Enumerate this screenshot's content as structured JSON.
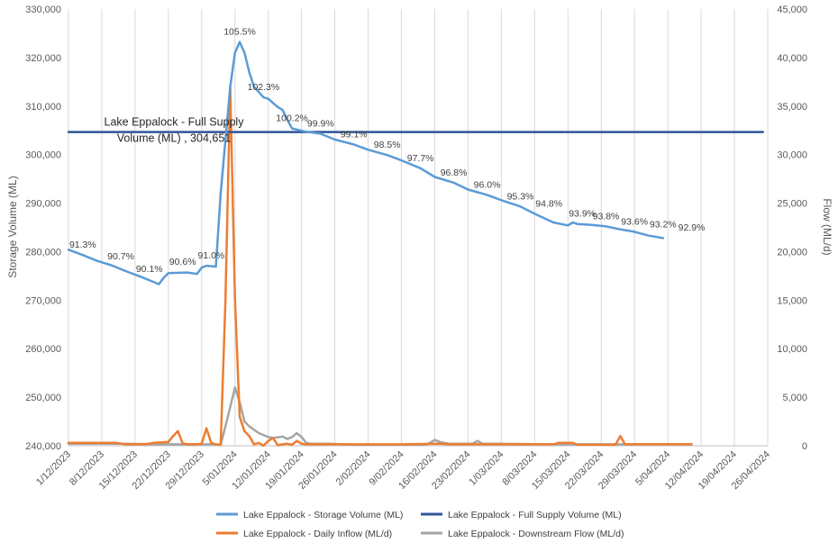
{
  "chart_data": {
    "type": "line",
    "x_axis": {
      "tick_labels": [
        "1/12/2023",
        "8/12/2023",
        "15/12/2023",
        "22/12/2023",
        "29/12/2023",
        "5/01/2024",
        "12/01/2024",
        "19/01/2024",
        "26/01/2024",
        "2/02/2024",
        "9/02/2024",
        "16/02/2024",
        "23/02/2024",
        "1/03/2024",
        "8/03/2024",
        "15/03/2024",
        "22/03/2024",
        "29/03/2024",
        "5/04/2024",
        "12/04/2024",
        "19/04/2024",
        "26/04/2024"
      ]
    },
    "y_left": {
      "label": "Storage Volume (ML)",
      "range": [
        240000,
        330000
      ],
      "tick_labels": [
        "240,000",
        "250,000",
        "260,000",
        "270,000",
        "280,000",
        "290,000",
        "300,000",
        "310,000",
        "320,000",
        "330,000"
      ]
    },
    "y_right": {
      "label": "Flow (ML/d)",
      "range": [
        0,
        45000
      ],
      "tick_labels": [
        "0",
        "5,000",
        "10,000",
        "15,000",
        "20,000",
        "25,000",
        "30,000",
        "35,000",
        "40,000",
        "45,000"
      ]
    },
    "grid": "vertical",
    "legend_position": "bottom",
    "colors": {
      "storage": "#5b9bd5",
      "fsl": "#2f5597",
      "inflow": "#ed7d31",
      "downstream": "#a5a5a5"
    },
    "series": [
      {
        "name": "Lake Eppalock - Storage Volume (ML)",
        "axis": "left",
        "points": [
          [
            0,
            280400
          ],
          [
            3,
            279300
          ],
          [
            6,
            278100
          ],
          [
            9,
            277200
          ],
          [
            12,
            276000
          ],
          [
            15,
            274900
          ],
          [
            18,
            273700
          ],
          [
            19,
            273300
          ],
          [
            20,
            274600
          ],
          [
            21,
            275600
          ],
          [
            25,
            275700
          ],
          [
            27,
            275400
          ],
          [
            28,
            276700
          ],
          [
            29,
            277100
          ],
          [
            31,
            276900
          ],
          [
            32,
            292000
          ],
          [
            33,
            303000
          ],
          [
            34,
            314000
          ],
          [
            35,
            321000
          ],
          [
            36,
            323200
          ],
          [
            37,
            321000
          ],
          [
            38,
            317000
          ],
          [
            39,
            314000
          ],
          [
            41,
            311800
          ],
          [
            42,
            311500
          ],
          [
            44,
            309800
          ],
          [
            45,
            309200
          ],
          [
            46,
            307200
          ],
          [
            47,
            305400
          ],
          [
            50,
            304700
          ],
          [
            53,
            304300
          ],
          [
            56,
            303100
          ],
          [
            60,
            302100
          ],
          [
            63,
            301000
          ],
          [
            67,
            299900
          ],
          [
            70,
            298800
          ],
          [
            74,
            297200
          ],
          [
            77,
            295400
          ],
          [
            81,
            294200
          ],
          [
            84,
            292800
          ],
          [
            88,
            291700
          ],
          [
            91,
            290600
          ],
          [
            95,
            289300
          ],
          [
            98,
            287800
          ],
          [
            102,
            286000
          ],
          [
            105,
            285400
          ],
          [
            106,
            286000
          ],
          [
            107,
            285700
          ],
          [
            110,
            285500
          ],
          [
            113,
            285200
          ],
          [
            116,
            284600
          ],
          [
            119,
            284100
          ],
          [
            122,
            283300
          ],
          [
            125,
            282800
          ]
        ],
        "point_labels": [
          {
            "x": 3,
            "y": 279300,
            "text": "91.3%"
          },
          {
            "x": 11,
            "y": 276900,
            "text": "90.7%"
          },
          {
            "x": 17,
            "y": 274300,
            "text": "90.1%"
          },
          {
            "x": 24,
            "y": 275800,
            "text": "90.6%"
          },
          {
            "x": 30,
            "y": 277100,
            "text": "91.0%"
          },
          {
            "x": 36,
            "y": 323200,
            "text": "105.5%"
          },
          {
            "x": 41,
            "y": 311800,
            "text": "102.3%"
          },
          {
            "x": 47,
            "y": 305400,
            "text": "100.2%"
          },
          {
            "x": 53,
            "y": 304300,
            "text": "99.9%"
          },
          {
            "x": 60,
            "y": 302100,
            "text": "99.1%"
          },
          {
            "x": 67,
            "y": 299900,
            "text": "98.5%"
          },
          {
            "x": 74,
            "y": 297200,
            "text": "97.7%"
          },
          {
            "x": 81,
            "y": 294200,
            "text": "96.8%"
          },
          {
            "x": 88,
            "y": 291700,
            "text": "96.0%"
          },
          {
            "x": 95,
            "y": 289300,
            "text": "95.3%"
          },
          {
            "x": 101,
            "y": 287800,
            "text": "94.8%"
          },
          {
            "x": 108,
            "y": 285700,
            "text": "93.9%"
          },
          {
            "x": 113,
            "y": 285200,
            "text": "93.8%"
          },
          {
            "x": 119,
            "y": 284100,
            "text": "93.6%"
          },
          {
            "x": 125,
            "y": 283500,
            "text": "93.2%"
          },
          {
            "x": 131,
            "y": 282900,
            "text": "92.9%"
          }
        ]
      },
      {
        "name": "Lake Eppalock - Full Supply Volume (ML)",
        "axis": "left",
        "points": [
          [
            0,
            304651
          ],
          [
            146,
            304651
          ]
        ],
        "annotation": "Lake Eppalock - Full Supply Volume (ML) ,  304,651"
      },
      {
        "name": "Lake Eppalock - Daily Inflow (ML/d)",
        "axis": "right",
        "points": [
          [
            0,
            300
          ],
          [
            10,
            300
          ],
          [
            12,
            150
          ],
          [
            16,
            150
          ],
          [
            18,
            300
          ],
          [
            21,
            400
          ],
          [
            22,
            1000
          ],
          [
            23,
            1500
          ],
          [
            24,
            250
          ],
          [
            25,
            150
          ],
          [
            27,
            150
          ],
          [
            28,
            200
          ],
          [
            29,
            1800
          ],
          [
            30,
            300
          ],
          [
            31,
            150
          ],
          [
            32,
            100
          ],
          [
            33,
            15000
          ],
          [
            34,
            37000
          ],
          [
            35,
            15000
          ],
          [
            36,
            3000
          ],
          [
            37,
            1500
          ],
          [
            38,
            1000
          ],
          [
            39,
            150
          ],
          [
            40,
            300
          ],
          [
            41,
            0
          ],
          [
            42,
            500
          ],
          [
            43,
            800
          ],
          [
            44,
            50
          ],
          [
            45,
            150
          ],
          [
            46,
            200
          ],
          [
            47,
            100
          ],
          [
            48,
            500
          ],
          [
            49,
            200
          ],
          [
            50,
            150
          ],
          [
            60,
            150
          ],
          [
            70,
            150
          ],
          [
            78,
            200
          ],
          [
            80,
            150
          ],
          [
            90,
            150
          ],
          [
            102,
            150
          ],
          [
            103,
            300
          ],
          [
            104,
            300
          ],
          [
            106,
            300
          ],
          [
            107,
            100
          ],
          [
            115,
            100
          ],
          [
            116,
            1000
          ],
          [
            117,
            150
          ],
          [
            120,
            150
          ],
          [
            125,
            150
          ],
          [
            131,
            150
          ]
        ]
      },
      {
        "name": "Lake Eppalock - Downstream Flow (ML/d)",
        "axis": "right",
        "points": [
          [
            0,
            200
          ],
          [
            10,
            200
          ],
          [
            20,
            150
          ],
          [
            30,
            150
          ],
          [
            32,
            100
          ],
          [
            33,
            2000
          ],
          [
            34,
            4000
          ],
          [
            35,
            6000
          ],
          [
            36,
            4500
          ],
          [
            37,
            2500
          ],
          [
            38,
            2000
          ],
          [
            40,
            1300
          ],
          [
            42,
            900
          ],
          [
            43,
            800
          ],
          [
            45,
            950
          ],
          [
            46,
            700
          ],
          [
            47,
            900
          ],
          [
            48,
            1300
          ],
          [
            49,
            900
          ],
          [
            50,
            300
          ],
          [
            51,
            200
          ],
          [
            55,
            200
          ],
          [
            60,
            100
          ],
          [
            75,
            100
          ],
          [
            76,
            300
          ],
          [
            77,
            600
          ],
          [
            78,
            400
          ],
          [
            80,
            200
          ],
          [
            85,
            200
          ],
          [
            86,
            500
          ],
          [
            87,
            200
          ],
          [
            90,
            200
          ],
          [
            100,
            150
          ],
          [
            110,
            150
          ],
          [
            120,
            150
          ],
          [
            131,
            150
          ]
        ]
      }
    ]
  }
}
